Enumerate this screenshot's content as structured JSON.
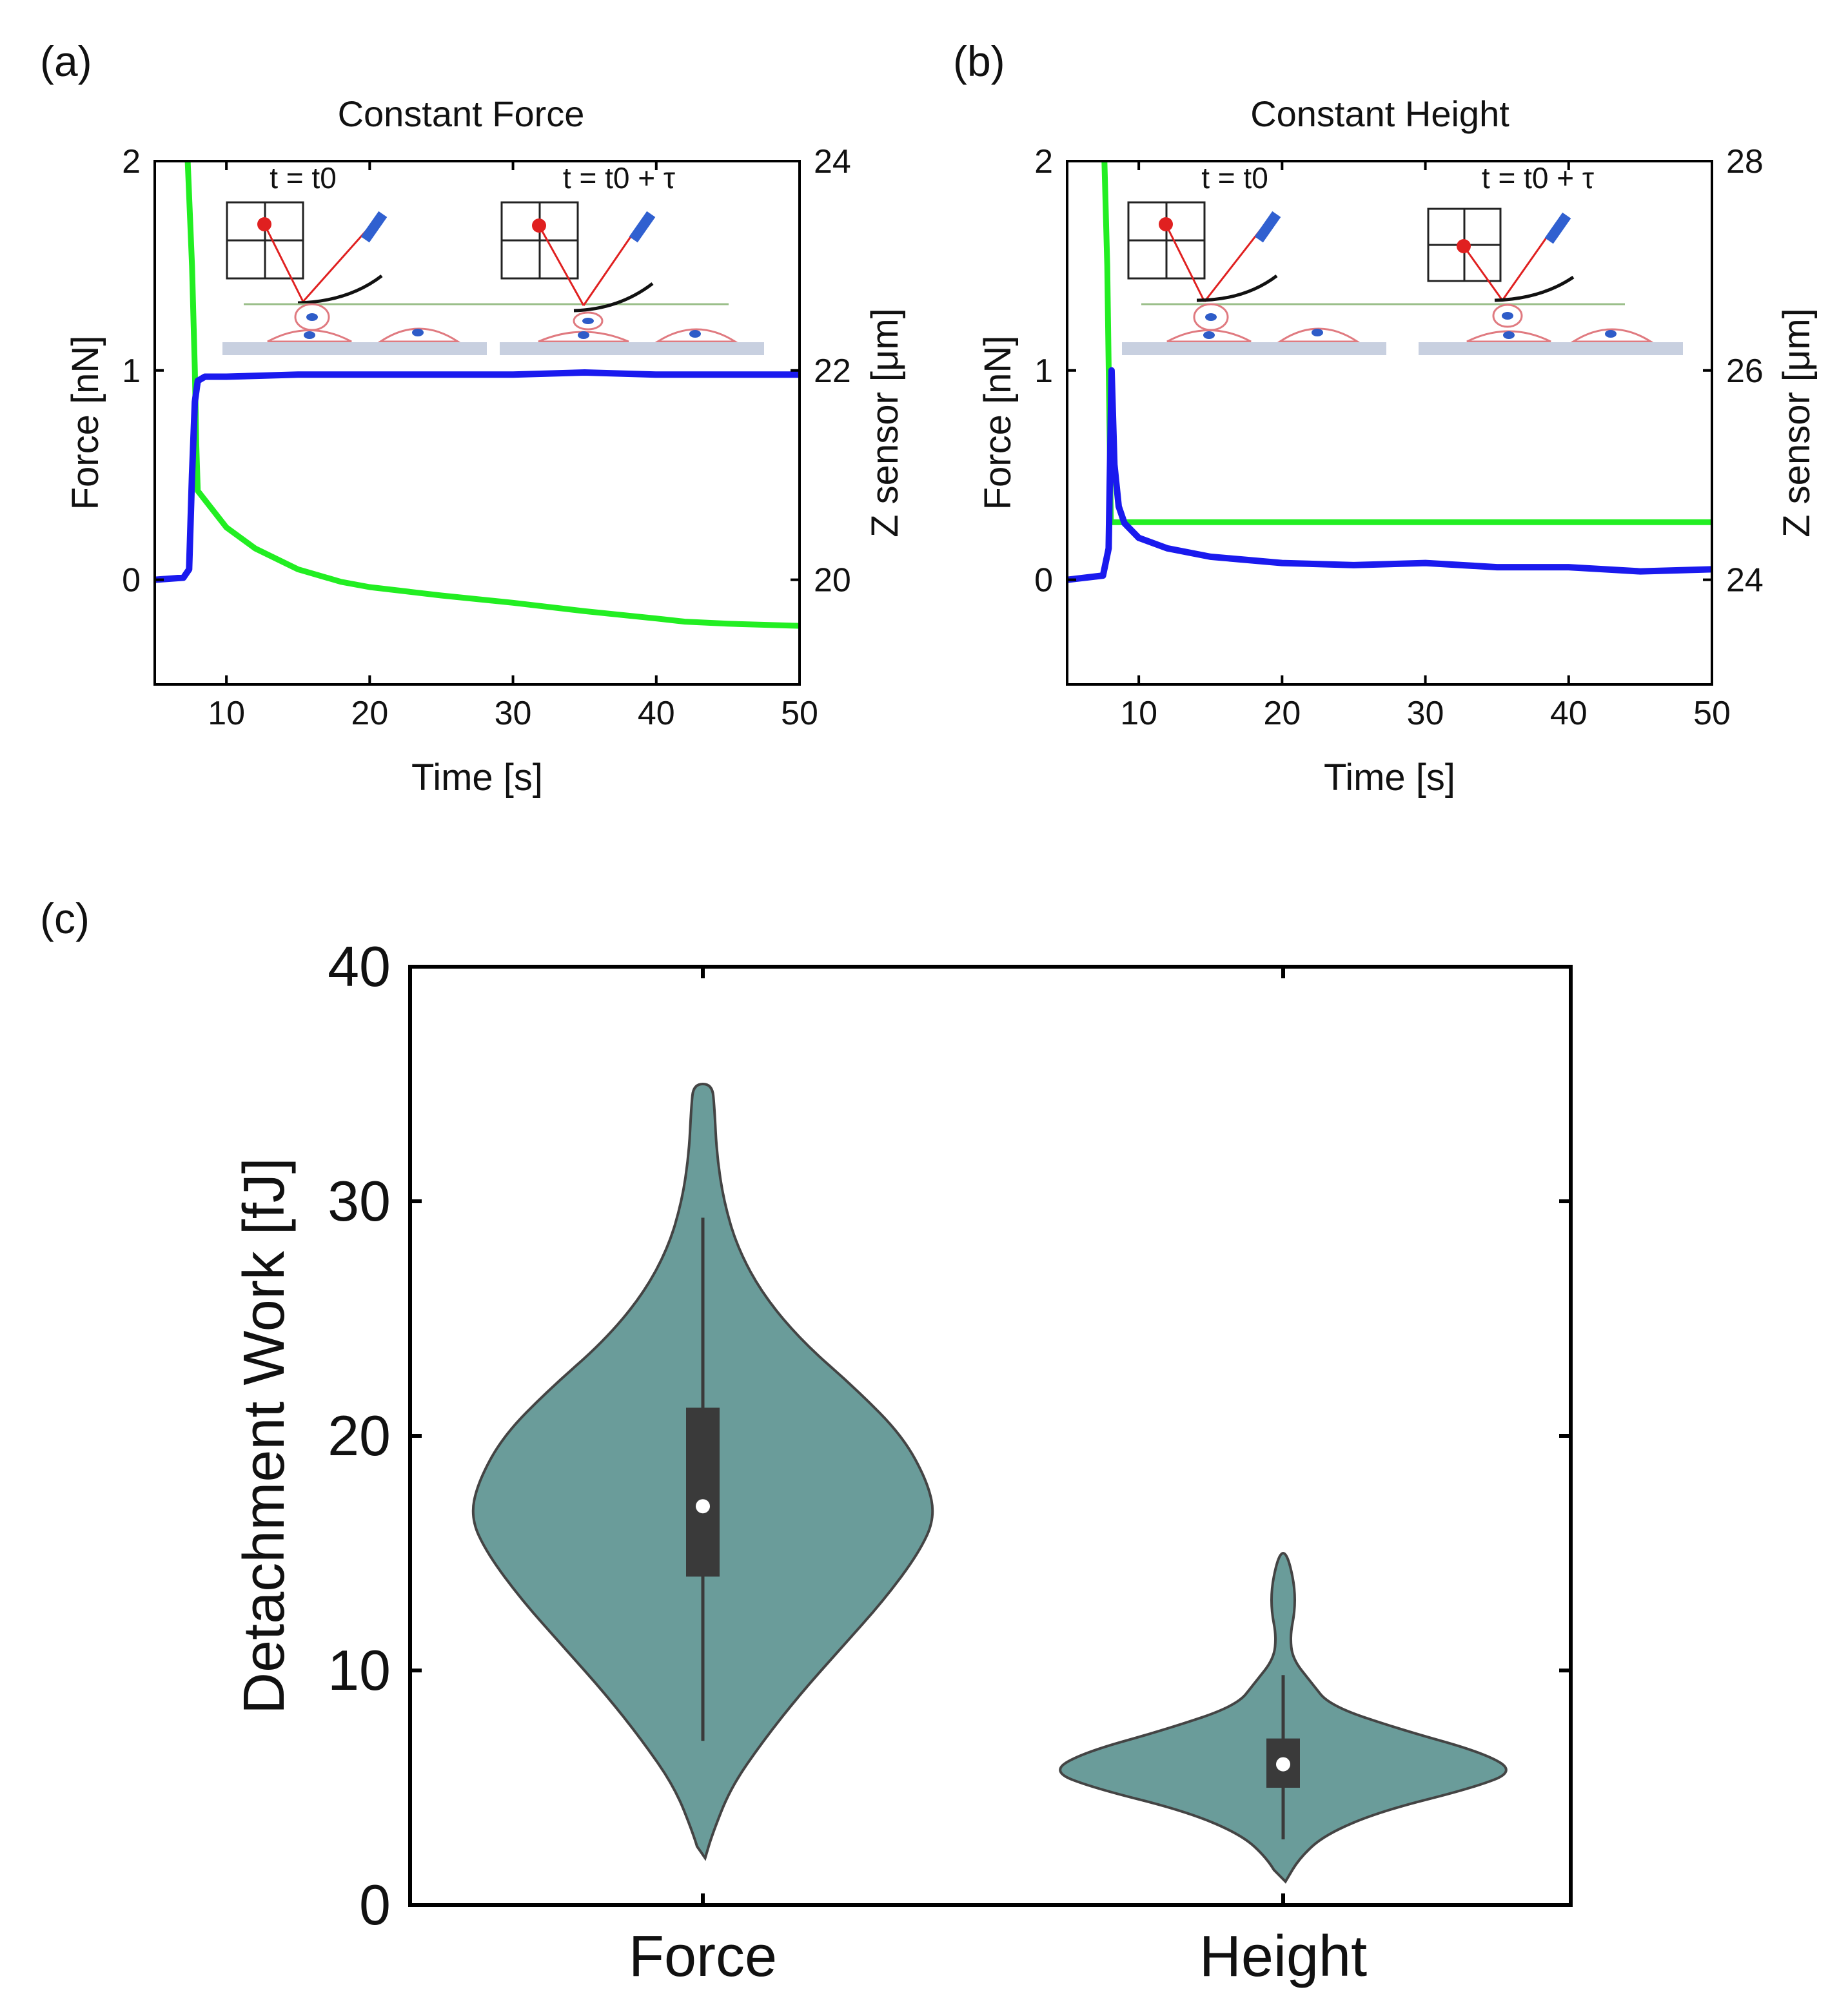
{
  "figure": {
    "panel_labels": [
      "(a)",
      "(b)",
      "(c)"
    ]
  },
  "colors": {
    "force_trace": "#1a1aee",
    "zsensor_trace": "#22ee22",
    "violin_fill": "#6a9c9a",
    "violin_edge": "#444444",
    "box": "#3a3a3a",
    "median": "#ffffff",
    "cantilever_laser": "#e02020",
    "cell": "#e07a80",
    "nucleus": "#2e5cc8",
    "substrate": "#c8d0e0"
  },
  "chart_data": [
    {
      "id": "a",
      "type": "line",
      "title": "Constant Force",
      "xlabel": "Time [s]",
      "ylabel": "Force [nN]",
      "y2label": "Z sensor [μm]",
      "xlim": [
        5,
        50
      ],
      "ylim": [
        -0.5,
        2
      ],
      "y2lim": [
        19,
        24
      ],
      "xticks": [
        10,
        20,
        30,
        40,
        50
      ],
      "yticks": [
        0,
        1,
        2
      ],
      "y2ticks": [
        20,
        22,
        24
      ],
      "inset_labels": {
        "left": "t = t0",
        "right": "t = t0 + τ"
      },
      "series": [
        {
          "name": "Force",
          "axis": "left",
          "color": "force_trace",
          "x": [
            5,
            7.0,
            7.4,
            7.6,
            7.8,
            8.0,
            8.5,
            10,
            15,
            20,
            25,
            30,
            35,
            40,
            45,
            50
          ],
          "y": [
            0.0,
            0.01,
            0.05,
            0.5,
            0.85,
            0.95,
            0.97,
            0.97,
            0.98,
            0.98,
            0.98,
            0.98,
            0.99,
            0.98,
            0.98,
            0.98
          ]
        },
        {
          "name": "Z sensor",
          "axis": "right",
          "color": "zsensor_trace",
          "x": [
            7.3,
            7.6,
            7.8,
            7.9,
            8.0,
            10,
            12,
            15,
            18,
            20,
            25,
            30,
            35,
            40,
            42,
            45,
            50
          ],
          "y": [
            24.0,
            23.0,
            22.0,
            21.3,
            20.85,
            20.5,
            20.3,
            20.1,
            19.98,
            19.93,
            19.85,
            19.78,
            19.7,
            19.63,
            19.6,
            19.58,
            19.56
          ]
        }
      ]
    },
    {
      "id": "b",
      "type": "line",
      "title": "Constant Height",
      "xlabel": "Time [s]",
      "ylabel": "Force [nN]",
      "y2label": "Z sensor [μm]",
      "xlim": [
        5,
        50
      ],
      "ylim": [
        -0.5,
        2
      ],
      "y2lim": [
        23,
        28
      ],
      "xticks": [
        10,
        20,
        30,
        40,
        50
      ],
      "yticks": [
        0,
        1,
        2
      ],
      "y2ticks": [
        24,
        26,
        28
      ],
      "inset_labels": {
        "left": "t = t0",
        "right": "t = t0 + τ"
      },
      "series": [
        {
          "name": "Force",
          "axis": "left",
          "color": "force_trace",
          "x": [
            5,
            7.5,
            7.9,
            8.1,
            8.3,
            8.6,
            9,
            10,
            12,
            15,
            20,
            25,
            30,
            35,
            40,
            45,
            50
          ],
          "y": [
            0.0,
            0.02,
            0.15,
            1.0,
            0.55,
            0.35,
            0.27,
            0.2,
            0.15,
            0.11,
            0.08,
            0.07,
            0.08,
            0.06,
            0.06,
            0.04,
            0.05
          ]
        },
        {
          "name": "Z sensor",
          "axis": "right",
          "color": "zsensor_trace",
          "x": [
            7.6,
            7.8,
            7.95,
            8.05,
            50
          ],
          "y": [
            28.0,
            27.0,
            25.5,
            24.55,
            24.55
          ]
        }
      ]
    },
    {
      "id": "c",
      "type": "violin",
      "xlabel": "",
      "ylabel": "Detachment Work [fJ]",
      "ylim": [
        0,
        40
      ],
      "yticks": [
        0,
        10,
        20,
        30,
        40
      ],
      "categories": [
        "Force",
        "Height"
      ],
      "violins": [
        {
          "name": "Force",
          "min": 2,
          "max": 35,
          "q1": 14,
          "median": 17,
          "q3": 21.2,
          "whisker_low": 7,
          "whisker_high": 29.3,
          "density": [
            [
              2,
              0.01
            ],
            [
              3,
              0.04
            ],
            [
              5,
              0.12
            ],
            [
              7,
              0.26
            ],
            [
              9,
              0.42
            ],
            [
              11,
              0.6
            ],
            [
              13,
              0.78
            ],
            [
              15,
              0.93
            ],
            [
              16.5,
              1.0
            ],
            [
              18,
              0.97
            ],
            [
              20,
              0.86
            ],
            [
              22,
              0.66
            ],
            [
              24,
              0.43
            ],
            [
              26,
              0.26
            ],
            [
              28,
              0.15
            ],
            [
              30,
              0.09
            ],
            [
              32,
              0.06
            ],
            [
              34,
              0.05
            ],
            [
              35,
              0.04
            ]
          ]
        },
        {
          "name": "Height",
          "min": 1,
          "max": 15,
          "q1": 5,
          "median": 6,
          "q3": 7.1,
          "whisker_low": 2.8,
          "whisker_high": 9.8,
          "density": [
            [
              1,
              0.01
            ],
            [
              2,
              0.07
            ],
            [
              3,
              0.18
            ],
            [
              4,
              0.42
            ],
            [
              5,
              0.82
            ],
            [
              5.7,
              1.0
            ],
            [
              6.5,
              0.86
            ],
            [
              7.5,
              0.5
            ],
            [
              8.5,
              0.2
            ],
            [
              9.5,
              0.12
            ],
            [
              10.5,
              0.04
            ],
            [
              11.5,
              0.03
            ],
            [
              12.5,
              0.05
            ],
            [
              13.5,
              0.05
            ],
            [
              14.5,
              0.03
            ],
            [
              15,
              0.01
            ]
          ]
        }
      ]
    }
  ]
}
